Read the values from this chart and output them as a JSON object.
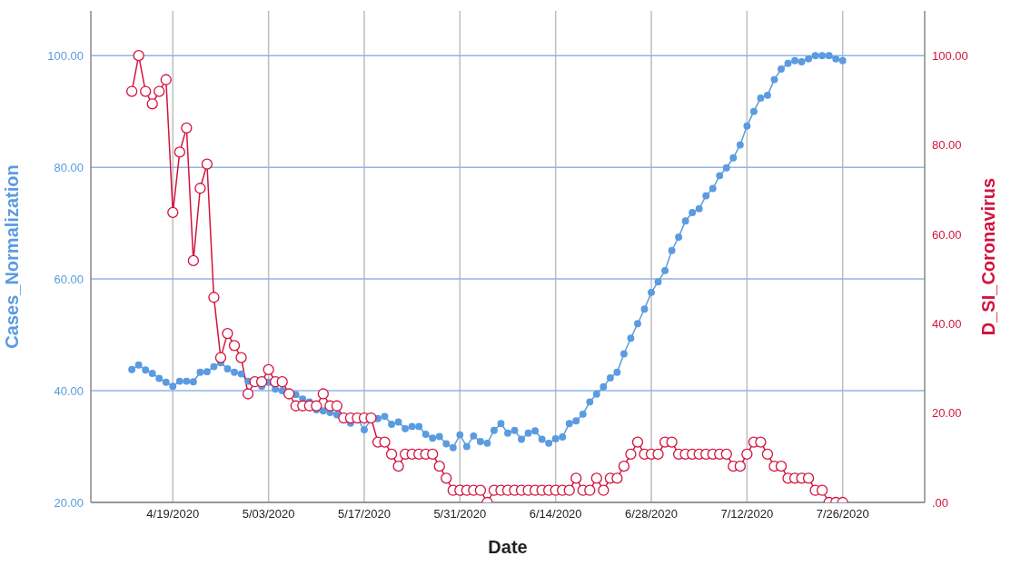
{
  "chart_data": {
    "type": "line",
    "xlabel": "Date",
    "ylabel": "Cases_Normalization",
    "y2label": "D_SI_Coronavirus",
    "x": [
      "2020-04-13",
      "2020-04-14",
      "2020-04-15",
      "2020-04-16",
      "2020-04-17",
      "2020-04-18",
      "2020-04-19",
      "2020-04-20",
      "2020-04-21",
      "2020-04-22",
      "2020-04-23",
      "2020-04-24",
      "2020-04-25",
      "2020-04-26",
      "2020-04-27",
      "2020-04-28",
      "2020-04-29",
      "2020-04-30",
      "2020-05-01",
      "2020-05-02",
      "2020-05-03",
      "2020-05-04",
      "2020-05-05",
      "2020-05-06",
      "2020-05-07",
      "2020-05-08",
      "2020-05-09",
      "2020-05-10",
      "2020-05-11",
      "2020-05-12",
      "2020-05-13",
      "2020-05-14",
      "2020-05-15",
      "2020-05-16",
      "2020-05-17",
      "2020-05-18",
      "2020-05-19",
      "2020-05-20",
      "2020-05-21",
      "2020-05-22",
      "2020-05-23",
      "2020-05-24",
      "2020-05-25",
      "2020-05-26",
      "2020-05-27",
      "2020-05-28",
      "2020-05-29",
      "2020-05-30",
      "2020-05-31",
      "2020-06-01",
      "2020-06-02",
      "2020-06-03",
      "2020-06-04",
      "2020-06-05",
      "2020-06-06",
      "2020-06-07",
      "2020-06-08",
      "2020-06-09",
      "2020-06-10",
      "2020-06-11",
      "2020-06-12",
      "2020-06-13",
      "2020-06-14",
      "2020-06-15",
      "2020-06-16",
      "2020-06-17",
      "2020-06-18",
      "2020-06-19",
      "2020-06-20",
      "2020-06-21",
      "2020-06-22",
      "2020-06-23",
      "2020-06-24",
      "2020-06-25",
      "2020-06-26",
      "2020-06-27",
      "2020-06-28",
      "2020-06-29",
      "2020-06-30",
      "2020-07-01",
      "2020-07-02",
      "2020-07-03",
      "2020-07-04",
      "2020-07-05",
      "2020-07-06",
      "2020-07-07",
      "2020-07-08",
      "2020-07-09",
      "2020-07-10",
      "2020-07-11",
      "2020-07-12",
      "2020-07-13",
      "2020-07-14",
      "2020-07-15",
      "2020-07-16",
      "2020-07-17",
      "2020-07-18",
      "2020-07-19",
      "2020-07-20",
      "2020-07-21",
      "2020-07-22",
      "2020-07-23",
      "2020-07-24",
      "2020-07-25",
      "2020-07-26"
    ],
    "series": [
      {
        "color": "#5b9be0",
        "marker": "circle",
        "axis": "y",
        "values": [
          43.8,
          44.6,
          43.7,
          43.1,
          42.2,
          41.5,
          40.8,
          41.7,
          41.7,
          41.6,
          43.3,
          43.4,
          44.3,
          45.0,
          43.9,
          43.3,
          43.0,
          41.7,
          41.5,
          40.8,
          41.5,
          40.3,
          40.0,
          39.4,
          39.3,
          38.5,
          38.0,
          36.6,
          36.4,
          36.1,
          35.7,
          34.8,
          34.2,
          35.0,
          33.0,
          34.9,
          35.0,
          35.4,
          34.0,
          34.4,
          33.2,
          33.6,
          33.6,
          32.2,
          31.5,
          31.8,
          30.5,
          29.8,
          32.1,
          30.0,
          31.9,
          30.9,
          30.6,
          32.9,
          34.1,
          32.4,
          32.9,
          31.3,
          32.4,
          32.8,
          31.3,
          30.6,
          31.4,
          31.7,
          34.1,
          34.6,
          35.8,
          38.0,
          39.4,
          40.7,
          42.3,
          43.3,
          46.6,
          49.4,
          52.0,
          54.6,
          57.6,
          59.5,
          61.5,
          65.1,
          67.5,
          70.4,
          71.9,
          72.6,
          74.9,
          76.2,
          78.5,
          79.9,
          81.7,
          84.0,
          87.4,
          90.0,
          92.4,
          92.9,
          95.7,
          97.6,
          98.6,
          99.1,
          98.9,
          99.4,
          100.0,
          100.0,
          100.0,
          99.4,
          99.1
        ]
      },
      {
        "color": "#d4133f",
        "marker": "circle",
        "axis": "y2",
        "values": [
          92,
          100,
          92,
          89.2,
          92,
          94.6,
          64.9,
          78.4,
          83.8,
          54.1,
          70.3,
          75.7,
          45.9,
          32.4,
          37.8,
          35.1,
          32.4,
          24.3,
          27.0,
          27.0,
          29.7,
          27.0,
          27.0,
          24.3,
          21.6,
          21.6,
          21.6,
          21.6,
          24.3,
          21.6,
          21.6,
          18.9,
          18.9,
          18.9,
          18.9,
          18.9,
          13.5,
          13.5,
          10.8,
          8.1,
          10.8,
          10.8,
          10.8,
          10.8,
          10.8,
          8.1,
          5.4,
          2.7,
          2.7,
          2.7,
          2.7,
          2.7,
          0,
          2.7,
          2.7,
          2.7,
          2.7,
          2.7,
          2.7,
          2.7,
          2.7,
          2.7,
          2.7,
          2.7,
          2.7,
          5.4,
          2.7,
          2.7,
          5.4,
          2.7,
          5.4,
          5.4,
          8.1,
          10.8,
          13.5,
          10.8,
          10.8,
          10.8,
          13.5,
          13.5,
          10.8,
          10.8,
          10.8,
          10.8,
          10.8,
          10.8,
          10.8,
          10.8,
          8.1,
          8.1,
          10.8,
          13.5,
          13.5,
          10.8,
          8.1,
          8.1,
          5.4,
          5.4,
          5.4,
          5.4,
          2.7,
          2.7,
          0,
          0,
          0
        ]
      }
    ],
    "xlim": [
      "2020-04-07",
      "2020-08-07"
    ],
    "xticks": [
      {
        "value": "2020-04-19",
        "label": "4/19/2020"
      },
      {
        "value": "2020-05-03",
        "label": "5/03/2020"
      },
      {
        "value": "2020-05-17",
        "label": "5/17/2020"
      },
      {
        "value": "2020-05-31",
        "label": "5/31/2020"
      },
      {
        "value": "2020-06-14",
        "label": "6/14/2020"
      },
      {
        "value": "2020-06-28",
        "label": "6/28/2020"
      },
      {
        "value": "2020-07-12",
        "label": "7/12/2020"
      },
      {
        "value": "2020-07-26",
        "label": "7/26/2020"
      }
    ],
    "ylim": [
      20,
      108
    ],
    "yticks": [
      {
        "value": 20,
        "label": "20.00"
      },
      {
        "value": 40,
        "label": "40.00"
      },
      {
        "value": 60,
        "label": "60.00"
      },
      {
        "value": 80,
        "label": "80.00"
      },
      {
        "value": 100,
        "label": "100.00"
      }
    ],
    "y2lim": [
      0,
      110
    ],
    "y2ticks": [
      {
        "value": 0,
        "label": ".00"
      },
      {
        "value": 20,
        "label": "20.00"
      },
      {
        "value": 40,
        "label": "40.00"
      },
      {
        "value": 60,
        "label": "60.00"
      },
      {
        "value": 80,
        "label": "80.00"
      },
      {
        "value": 100,
        "label": "100.00"
      }
    ],
    "grid": true,
    "line_style": "solid"
  }
}
